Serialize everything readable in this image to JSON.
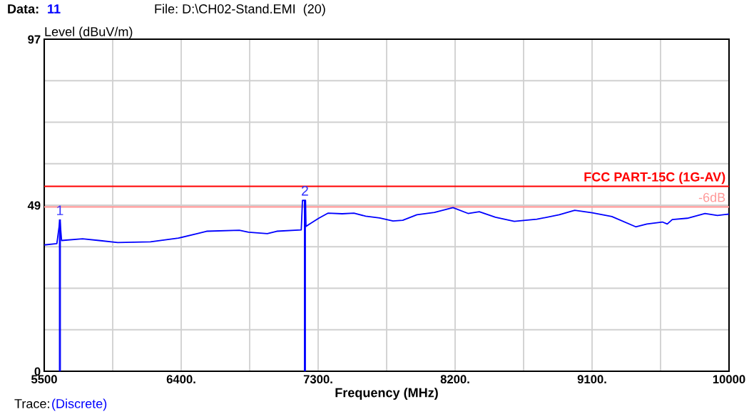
{
  "chart_data": {
    "type": "line",
    "xlabel": "Frequency (MHz)",
    "ylabel": "Level (dBuV/m)",
    "annotations": [
      "Data:",
      "11",
      "File: D:\\CH02-Stand.EMI  (20)",
      "Trace:",
      "(Discrete)",
      {
        "text": "1",
        "x": 5603,
        "y": 44.2
      },
      {
        "text": "2",
        "x": 7213,
        "y": 49.9
      }
    ],
    "xlim": [
      5500,
      10000
    ],
    "xticks": [
      {
        "value": 5500,
        "label": "5500"
      },
      {
        "value": 5950,
        "label": null
      },
      {
        "value": 6400,
        "label": "6400."
      },
      {
        "value": 6850,
        "label": null
      },
      {
        "value": 7300,
        "label": "7300."
      },
      {
        "value": 7750,
        "label": null
      },
      {
        "value": 8200,
        "label": "8200."
      },
      {
        "value": 8650,
        "label": null
      },
      {
        "value": 9100,
        "label": "9100."
      },
      {
        "value": 9550,
        "label": null
      },
      {
        "value": 10000,
        "label": "10000"
      }
    ],
    "ylim": [
      0,
      97
    ],
    "yticks": [
      0,
      {
        "value": 12.125,
        "label": null
      },
      {
        "value": 24.25,
        "label": null
      },
      {
        "value": 36.375,
        "label": null
      },
      {
        "value": 48.5,
        "label": "49"
      },
      {
        "value": 60.625,
        "label": null
      },
      {
        "value": 72.75,
        "label": null
      },
      {
        "value": 84.875,
        "label": null
      },
      97
    ],
    "grid": true,
    "ref_lines": [
      {
        "axis": "y",
        "value": 54,
        "label": "FCC PART-15C (1G-AV)",
        "color": "#ff0000"
      },
      {
        "axis": "y",
        "value": 48,
        "label": "-6dB",
        "color": "#ff9999"
      }
    ],
    "series": [
      {
        "color": "#0000ff",
        "x": [
          5500,
          5583,
          5598,
          5603,
          5614,
          5752,
          5860,
          5983,
          6198,
          6382,
          6505,
          6567,
          6782,
          6843,
          6966,
          7028,
          7189,
          7197,
          7217,
          7220,
          7243,
          7304,
          7366,
          7458,
          7535,
          7612,
          7704,
          7792,
          7856,
          7949,
          8064,
          8186,
          8285,
          8359,
          8465,
          8589,
          8737,
          8884,
          8986,
          9101,
          9230,
          9387,
          9460,
          9562,
          9594,
          9627,
          9726,
          9842,
          9924,
          10000
        ],
        "values": [
          36.9,
          37.3,
          42.3,
          44.2,
          38.2,
          38.7,
          38.2,
          37.6,
          37.8,
          38.9,
          40.2,
          40.9,
          41.2,
          40.6,
          40.2,
          40.9,
          41.3,
          49.9,
          49.9,
          42.3,
          43.0,
          44.7,
          46.2,
          46.0,
          46.2,
          45.3,
          44.8,
          43.9,
          44.1,
          45.7,
          46.4,
          47.8,
          46.1,
          46.6,
          45.0,
          43.8,
          44.4,
          45.7,
          47.0,
          46.3,
          45.2,
          42.2,
          43.0,
          43.6,
          43.0,
          44.3,
          44.7,
          46.1,
          45.5,
          45.9
        ]
      },
      {
        "type": "bar",
        "color": "#0000ff",
        "x": [
          5603,
          7213
        ],
        "values": [
          44.2,
          49.9
        ]
      }
    ]
  }
}
